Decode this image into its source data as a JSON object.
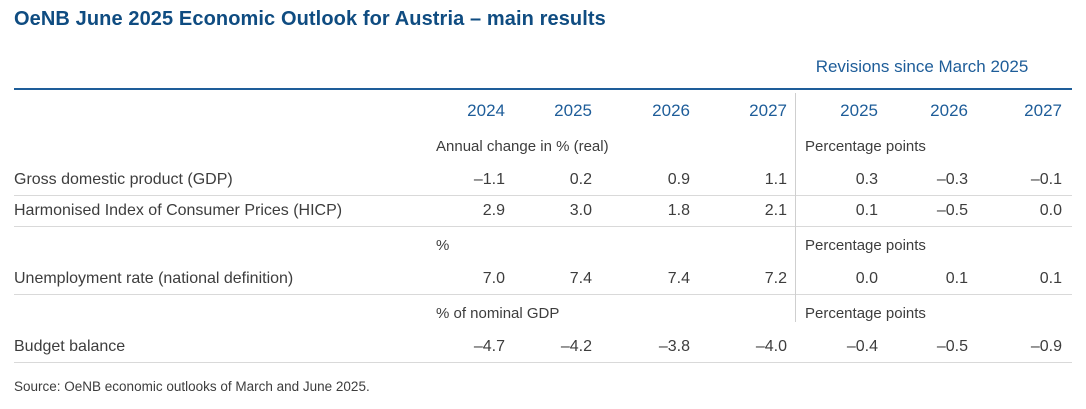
{
  "title": "OeNB June 2025 Economic Outlook for Austria – main results",
  "revisions_header": "Revisions since March 2025",
  "columns": {
    "main_years": [
      "2024",
      "2025",
      "2026",
      "2027"
    ],
    "revision_years": [
      "2025",
      "2026",
      "2027"
    ]
  },
  "groups": [
    {
      "unit_main": "Annual change in % (real)",
      "unit_rev": "Percentage points",
      "rows": [
        {
          "label": "Gross domestic product (GDP)",
          "main": [
            "–1.1",
            "0.2",
            "0.9",
            "1.1"
          ],
          "rev": [
            "0.3",
            "–0.3",
            "–0.1"
          ]
        },
        {
          "label": "Harmonised Index of Consumer Prices (HICP)",
          "main": [
            "2.9",
            "3.0",
            "1.8",
            "2.1"
          ],
          "rev": [
            "0.1",
            "–0.5",
            "0.0"
          ]
        }
      ]
    },
    {
      "unit_main": "%",
      "unit_rev": "Percentage points",
      "rows": [
        {
          "label": "Unemployment rate (national definition)",
          "main": [
            "7.0",
            "7.4",
            "7.4",
            "7.2"
          ],
          "rev": [
            "0.0",
            "0.1",
            "0.1"
          ]
        }
      ]
    },
    {
      "unit_main": "% of nominal GDP",
      "unit_rev": "Percentage points",
      "rows": [
        {
          "label": "Budget balance",
          "main": [
            "–4.7",
            "–4.2",
            "–3.8",
            "–4.0"
          ],
          "rev": [
            "–0.4",
            "–0.5",
            "–0.9"
          ]
        }
      ]
    }
  ],
  "source": "Source: OeNB economic outlooks of March and June 2025.",
  "colors": {
    "title_blue": "#0f4c81",
    "accent_blue": "#1e5d99",
    "text_gray": "#3d3d3d",
    "rule_gray": "#d9d9d9"
  }
}
